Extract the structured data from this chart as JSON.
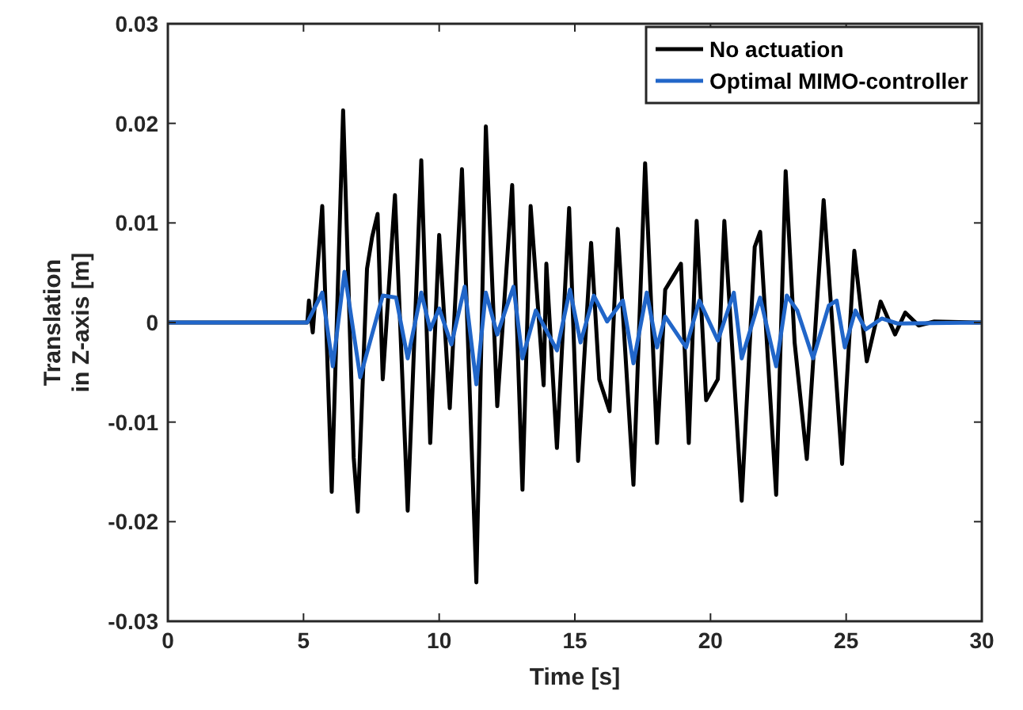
{
  "chart_data": {
    "type": "line",
    "xlabel": "Time [s]",
    "ylabel": "Translation\nin Z-axis [m]",
    "xlim": [
      0,
      30
    ],
    "xticks": [
      0,
      5,
      10,
      15,
      20,
      25,
      30
    ],
    "ylim": [
      -0.03,
      0.03
    ],
    "yticks": [
      -0.03,
      -0.02,
      -0.01,
      {
        "value": 0,
        "label": "0"
      },
      0.01,
      0.02,
      0.03
    ],
    "grid": false,
    "legend": "top right",
    "marker": "none",
    "line_style": "solid",
    "series": [
      {
        "name": "No actuation",
        "color": "#000000",
        "x": [
          0,
          5.14,
          5.2,
          5.34,
          5.69,
          6.04,
          6.46,
          6.85,
          7.0,
          7.34,
          7.53,
          7.73,
          7.92,
          8.37,
          8.84,
          9.34,
          9.67,
          10.0,
          10.39,
          10.84,
          11.37,
          11.72,
          12.14,
          12.69,
          13.07,
          13.37,
          13.85,
          13.95,
          14.34,
          14.79,
          15.12,
          15.6,
          15.9,
          16.28,
          16.58,
          17.16,
          17.59,
          18.03,
          18.33,
          18.91,
          19.2,
          19.49,
          19.84,
          20.27,
          20.51,
          21.15,
          21.63,
          21.83,
          22.42,
          22.77,
          23.1,
          23.55,
          24.17,
          24.85,
          25.3,
          25.76,
          26.27,
          26.8,
          27.18,
          27.67,
          28.25,
          29.8,
          30
        ],
        "values": [
          0,
          0,
          0.0022,
          -0.001,
          0.0117,
          -0.017,
          0.0213,
          -0.0136,
          -0.019,
          0.0054,
          0.0086,
          0.0109,
          -0.0057,
          0.0128,
          -0.0189,
          0.0163,
          -0.0121,
          0.0088,
          -0.0086,
          0.0154,
          -0.0261,
          0.0197,
          -0.0084,
          0.0138,
          -0.0168,
          0.0117,
          -0.0063,
          0.0059,
          -0.0126,
          0.0115,
          -0.0139,
          0.008,
          -0.0057,
          -0.0089,
          0.0094,
          -0.0163,
          0.016,
          -0.0121,
          0.0033,
          0.0059,
          -0.0121,
          0.0102,
          -0.0078,
          -0.0057,
          0.0102,
          -0.0179,
          0.0076,
          0.0091,
          -0.0173,
          0.0152,
          -0.002,
          -0.0137,
          0.0123,
          -0.0142,
          0.0072,
          -0.0039,
          0.0021,
          -0.0012,
          0.001,
          -0.0003,
          0.0001,
          0,
          0
        ]
      },
      {
        "name": "Optimal MIMO-controller",
        "color": "#2166c9",
        "x": [
          0,
          5.14,
          5.69,
          6.08,
          6.51,
          7.09,
          7.92,
          8.41,
          8.84,
          9.34,
          9.67,
          10.0,
          10.45,
          10.94,
          11.37,
          11.72,
          12.14,
          12.74,
          13.07,
          13.56,
          14.34,
          14.82,
          15.21,
          15.7,
          16.19,
          16.77,
          17.16,
          17.65,
          18.03,
          18.33,
          19.1,
          19.59,
          20.27,
          20.86,
          21.15,
          21.83,
          22.42,
          22.81,
          23.2,
          23.78,
          24.36,
          24.65,
          24.95,
          25.34,
          25.72,
          26.31,
          26.89,
          30
        ],
        "values": [
          0,
          0,
          0.003,
          -0.0044,
          0.0051,
          -0.0055,
          0.0027,
          0.0025,
          -0.0036,
          0.003,
          -0.0007,
          0.0014,
          -0.0022,
          0.0036,
          -0.0062,
          0.003,
          -0.0012,
          0.0036,
          -0.0036,
          0.0012,
          -0.0028,
          0.0033,
          -0.002,
          0.0027,
          0.0001,
          0.0022,
          -0.0041,
          0.003,
          -0.0025,
          0.0006,
          -0.0025,
          0.0022,
          -0.0018,
          0.003,
          -0.0036,
          0.0025,
          -0.0044,
          0.0027,
          0.0012,
          -0.0036,
          0.0017,
          0.0022,
          -0.0025,
          0.0012,
          -0.0007,
          0.0004,
          -0.0001,
          0
        ]
      }
    ]
  }
}
